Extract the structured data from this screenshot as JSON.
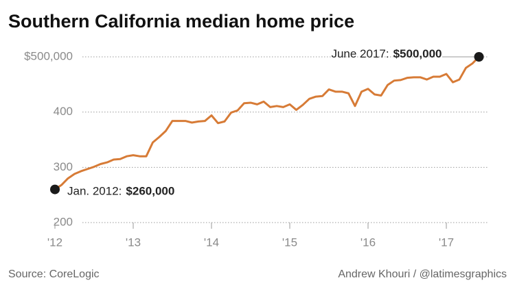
{
  "chart_data": {
    "type": "line",
    "title": "Southern California median home price",
    "x": [
      "2012-01",
      "2012-02",
      "2012-03",
      "2012-04",
      "2012-05",
      "2012-06",
      "2012-07",
      "2012-08",
      "2012-09",
      "2012-10",
      "2012-11",
      "2012-12",
      "2013-01",
      "2013-02",
      "2013-03",
      "2013-04",
      "2013-05",
      "2013-06",
      "2013-07",
      "2013-08",
      "2013-09",
      "2013-10",
      "2013-11",
      "2013-12",
      "2014-01",
      "2014-02",
      "2014-03",
      "2014-04",
      "2014-05",
      "2014-06",
      "2014-07",
      "2014-08",
      "2014-09",
      "2014-10",
      "2014-11",
      "2014-12",
      "2015-01",
      "2015-02",
      "2015-03",
      "2015-04",
      "2015-05",
      "2015-06",
      "2015-07",
      "2015-08",
      "2015-09",
      "2015-10",
      "2015-11",
      "2015-12",
      "2016-01",
      "2016-02",
      "2016-03",
      "2016-04",
      "2016-05",
      "2016-06",
      "2016-07",
      "2016-08",
      "2016-09",
      "2016-10",
      "2016-11",
      "2016-12",
      "2017-01",
      "2017-02",
      "2017-03",
      "2017-04",
      "2017-05",
      "2017-06"
    ],
    "series": [
      {
        "color": "#d77b36",
        "values": [
          260,
          268,
          280,
          288,
          293,
          297,
          301,
          306,
          309,
          314,
          315,
          320,
          322,
          320,
          320,
          345,
          355,
          366,
          384,
          384,
          384,
          381,
          383,
          384,
          394,
          380,
          383,
          399,
          403,
          416,
          417,
          414,
          419,
          409,
          411,
          409,
          414,
          404,
          413,
          424,
          428,
          429,
          441,
          437,
          437,
          434,
          411,
          437,
          442,
          432,
          430,
          449,
          457,
          458,
          462,
          463,
          463,
          459,
          464,
          464,
          469,
          454,
          459,
          480,
          488,
          500
        ]
      }
    ],
    "ylim": [
      200,
      500
    ],
    "yticks": [
      200,
      300,
      400,
      {
        "value": 500,
        "label": "$500,000"
      }
    ],
    "xlim": [
      "2012-01",
      "2017-06"
    ],
    "xticks": [
      {
        "value": "2012-01",
        "label": "'12"
      },
      {
        "value": "2013-01",
        "label": "'13"
      },
      {
        "value": "2014-01",
        "label": "'14"
      },
      {
        "value": "2015-01",
        "label": "'15"
      },
      {
        "value": "2016-01",
        "label": "'16"
      },
      {
        "value": "2017-01",
        "label": "'17"
      }
    ],
    "grid": true,
    "annotations": [
      {
        "text": "Jan. 2012:",
        "bold": "$260,000"
      },
      {
        "text": "June 2017:",
        "bold": "$500,000"
      }
    ],
    "source": "Source: CoreLogic",
    "credit": "Andrew Khouri / @latimesgraphics"
  }
}
